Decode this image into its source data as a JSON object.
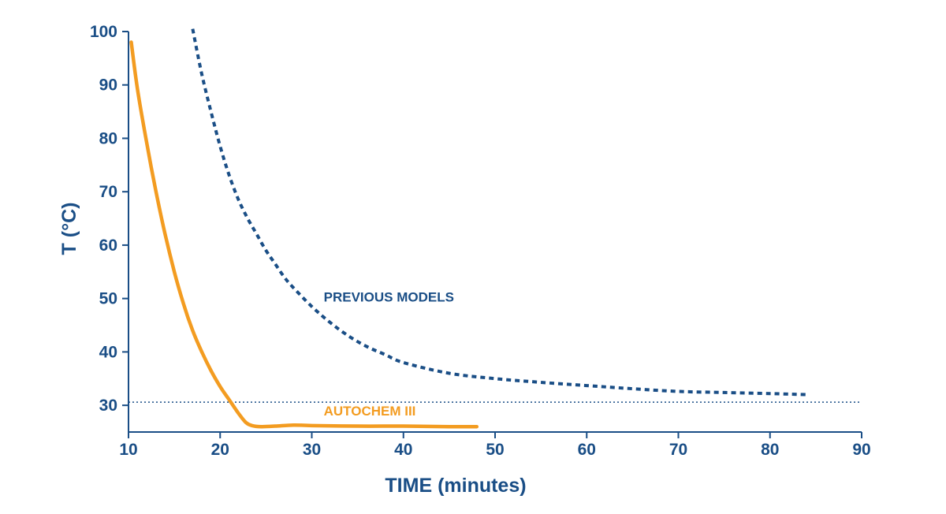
{
  "chart_data": {
    "type": "line",
    "xlabel": "TIME (minutes)",
    "ylabel": "T (°C)",
    "xlim": [
      10,
      90
    ],
    "ylim": [
      25,
      100
    ],
    "x_ticks": [
      10,
      20,
      30,
      40,
      50,
      60,
      70,
      80,
      90
    ],
    "y_ticks": [
      30,
      40,
      50,
      60,
      70,
      80,
      90,
      100
    ],
    "grid": false,
    "reference_line": {
      "y": 30.6,
      "style": "dotted",
      "color": "#1a4e86"
    },
    "series": [
      {
        "name": "AUTOCHEM III",
        "color": "#f39c21",
        "style": "solid",
        "label_anchor": {
          "x": 31.3,
          "y": 28.1
        },
        "x": [
          10.3,
          11,
          12,
          13,
          14,
          15,
          16,
          17,
          18,
          19,
          20,
          21,
          22,
          22.8,
          23.5,
          24.5,
          26,
          28,
          30,
          35,
          40,
          45,
          48
        ],
        "y": [
          98,
          89,
          79,
          70,
          62,
          55,
          49,
          44,
          40,
          36.5,
          33.5,
          31,
          28.5,
          26.8,
          26.2,
          26.0,
          26.1,
          26.3,
          26.2,
          26.1,
          26.1,
          26.0,
          26.0
        ]
      },
      {
        "name": "PREVIOUS MODELS",
        "color": "#1a4e86",
        "style": "dashed",
        "label_anchor": {
          "x": 31.3,
          "y": 49.4
        },
        "x": [
          17,
          18,
          19,
          20,
          21,
          22,
          23,
          24,
          25,
          26,
          27,
          28,
          30,
          32,
          34,
          36,
          38,
          40,
          45,
          50,
          55,
          60,
          65,
          70,
          75,
          80,
          84
        ],
        "y": [
          100.5,
          92,
          85,
          78.5,
          73,
          68.5,
          65,
          62,
          59,
          56.5,
          54,
          52,
          48.5,
          45.5,
          43,
          41,
          39.5,
          38,
          36,
          35,
          34.3,
          33.7,
          33.1,
          32.6,
          32.4,
          32.2,
          32.0
        ]
      }
    ]
  }
}
